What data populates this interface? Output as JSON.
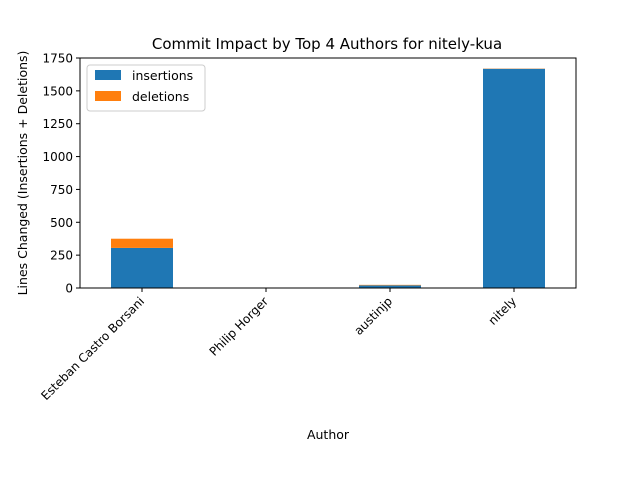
{
  "chart_data": {
    "type": "bar",
    "stacked": true,
    "title": "Commit Impact by Top 4 Authors for nitely-kua",
    "xlabel": "Author",
    "ylabel": "Lines Changed (Insertions + Deletions)",
    "categories": [
      "Esteban Castro Borsani",
      "Philip Horger",
      "austinjp",
      "nitely"
    ],
    "series": [
      {
        "name": "insertions",
        "color": "#1f77b4",
        "values": [
          305,
          0,
          20,
          1668
        ]
      },
      {
        "name": "deletions",
        "color": "#ff7f0e",
        "values": [
          70,
          0,
          4,
          2
        ]
      }
    ],
    "ylim": [
      0,
      1750
    ],
    "yticks": [
      "0",
      "250",
      "500",
      "750",
      "1000",
      "1250",
      "1500",
      "1750"
    ],
    "grid": false,
    "legend_position": "upper-left"
  }
}
